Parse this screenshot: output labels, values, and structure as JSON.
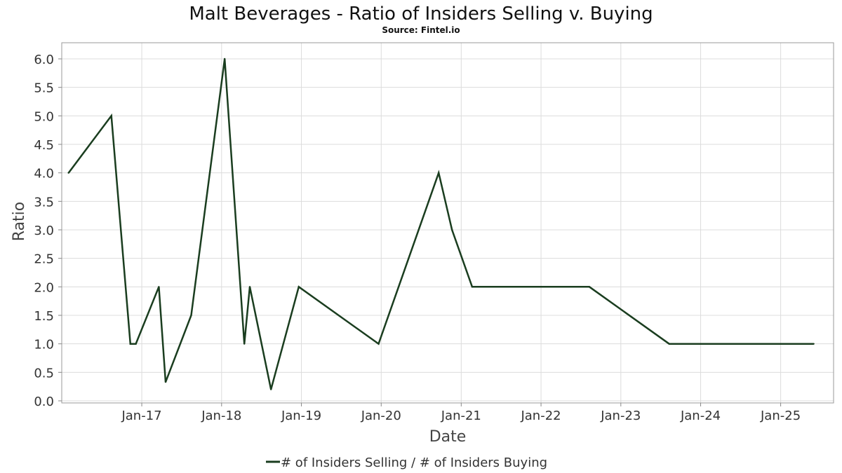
{
  "chart_data": {
    "type": "line",
    "title": "Malt Beverages - Ratio of Insiders Selling v. Buying",
    "subtitle": "Source: Fintel.io",
    "xlabel": "Date",
    "ylabel": "Ratio",
    "ylim": [
      0,
      6.0
    ],
    "xlim": [
      "2016-01-01",
      "2025-08-31"
    ],
    "yticks": [
      0.0,
      0.5,
      1.0,
      1.5,
      2.0,
      2.5,
      3.0,
      3.5,
      4.0,
      4.5,
      5.0,
      5.5,
      6.0
    ],
    "ytick_labels": [
      "0.0",
      "0.5",
      "1.0",
      "1.5",
      "2.0",
      "2.5",
      "3.0",
      "3.5",
      "4.0",
      "4.5",
      "5.0",
      "5.5",
      "6.0"
    ],
    "xticks": [
      "2017-01-01",
      "2018-01-01",
      "2019-01-01",
      "2020-01-01",
      "2021-01-01",
      "2022-01-01",
      "2023-01-01",
      "2024-01-01",
      "2025-01-01"
    ],
    "xtick_labels": [
      "Jan-17",
      "Jan-18",
      "Jan-19",
      "Jan-20",
      "Jan-21",
      "Jan-22",
      "Jan-23",
      "Jan-24",
      "Jan-25"
    ],
    "grid": true,
    "legend_position": "bottom-center",
    "series": [
      {
        "name": "# of Insiders Selling / # of Insiders Buying",
        "color": "#1a3d1f",
        "points": [
          [
            "2016-02-01",
            4.0
          ],
          [
            "2016-08-15",
            5.0
          ],
          [
            "2016-11-10",
            1.0
          ],
          [
            "2016-12-05",
            1.0
          ],
          [
            "2017-03-20",
            2.0
          ],
          [
            "2017-04-20",
            0.33
          ],
          [
            "2017-08-15",
            1.5
          ],
          [
            "2018-01-15",
            6.0
          ],
          [
            "2018-04-15",
            1.0
          ],
          [
            "2018-05-10",
            2.0
          ],
          [
            "2018-08-15",
            0.2
          ],
          [
            "2018-12-20",
            2.0
          ],
          [
            "2019-12-20",
            1.0
          ],
          [
            "2020-09-20",
            4.0
          ],
          [
            "2020-11-20",
            3.0
          ],
          [
            "2021-02-20",
            2.0
          ],
          [
            "2022-08-10",
            2.0
          ],
          [
            "2023-08-10",
            1.0
          ],
          [
            "2023-11-10",
            1.0
          ],
          [
            "2025-06-01",
            1.0
          ]
        ]
      }
    ]
  }
}
